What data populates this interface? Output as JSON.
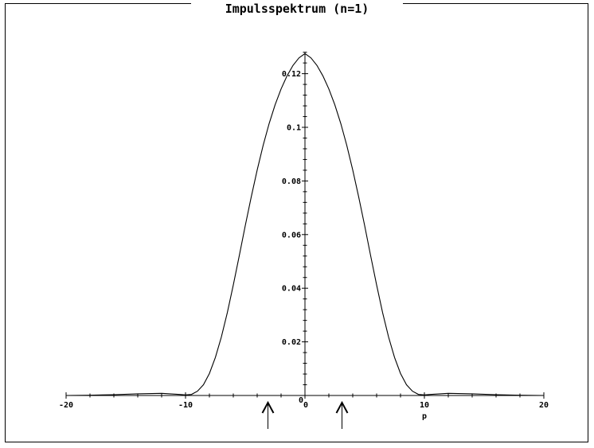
{
  "chart_data": {
    "type": "line",
    "title": "Impulsspektrum (n=1)",
    "xlabel": "p",
    "ylabel": "",
    "xlim": [
      -20,
      20
    ],
    "ylim": [
      0,
      0.128
    ],
    "x_ticks": [
      -20,
      -10,
      0,
      10,
      20
    ],
    "y_ticks": [
      0.02,
      0.04,
      0.06,
      0.08,
      0.1,
      0.12
    ],
    "y_tick_labels": [
      "0.02",
      "0.04",
      "0.06",
      "0.08",
      "0.1",
      "0.12"
    ],
    "x_tick_labels": [
      "-20",
      "-10",
      "0",
      "10",
      "20"
    ],
    "origin_label": "0",
    "grid": false,
    "series": [
      {
        "x": [
          -20,
          -18,
          -16,
          -14,
          -12,
          -10.5,
          -10,
          -9.5,
          -9,
          -8.5,
          -8,
          -7.5,
          -7,
          -6.5,
          -6,
          -5.5,
          -5,
          -4.5,
          -4,
          -3.5,
          -3,
          -2.5,
          -2,
          -1.5,
          -1,
          -0.5,
          0,
          0.5,
          1,
          1.5,
          2,
          2.5,
          3,
          3.5,
          4,
          4.5,
          5,
          5.5,
          6,
          6.5,
          7,
          7.5,
          8,
          8.5,
          9,
          9.5,
          10,
          10.5,
          12,
          14,
          16,
          18,
          20
        ],
        "y": [
          0,
          0.0001,
          0.0003,
          0.0006,
          0.0008,
          0.0004,
          0.0002,
          0.0004,
          0.0016,
          0.004,
          0.0082,
          0.0142,
          0.0218,
          0.0309,
          0.0412,
          0.0521,
          0.0633,
          0.074,
          0.0841,
          0.0933,
          0.1014,
          0.1084,
          0.1143,
          0.1192,
          0.1231,
          0.1259,
          0.1275,
          0.1259,
          0.1231,
          0.1192,
          0.1143,
          0.1084,
          0.1014,
          0.0933,
          0.0841,
          0.074,
          0.0633,
          0.0521,
          0.0412,
          0.0309,
          0.0218,
          0.0142,
          0.0082,
          0.004,
          0.0016,
          0.0004,
          0.0002,
          0.0004,
          0.0008,
          0.0006,
          0.0003,
          0.0001,
          0
        ]
      }
    ],
    "annotations": [
      {
        "type": "arrow-up",
        "x": -3.1
      },
      {
        "type": "arrow-up",
        "x": 3.1
      }
    ]
  }
}
